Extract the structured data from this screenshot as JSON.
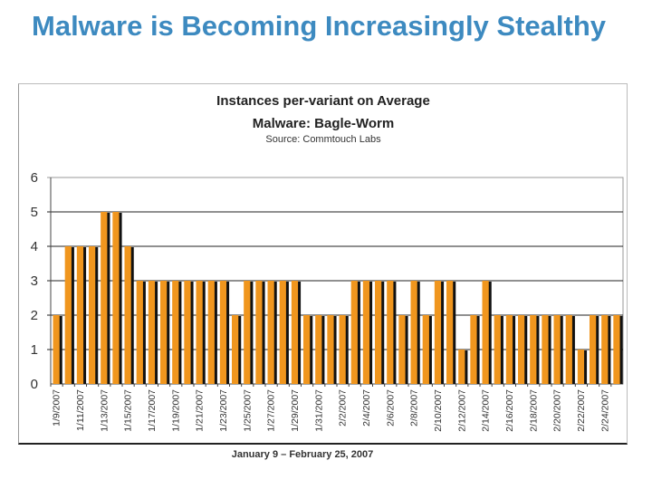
{
  "slide": {
    "title": "Malware is Becoming Increasingly Stealthy"
  },
  "chart_data": {
    "type": "bar",
    "title": "Instances per-variant on Average",
    "subtitle": "Malware: Bagle-Worm",
    "source": "Source: Commtouch Labs",
    "xlabel": "January 9 – February 25, 2007",
    "ylabel": "",
    "ylim": [
      0,
      6
    ],
    "yticks": [
      0,
      1,
      2,
      3,
      4,
      5,
      6
    ],
    "grid": true,
    "colors": {
      "bar": "#f0961e",
      "shadow": "#111111"
    },
    "categories": [
      "1/9/2007",
      "1/10/2007",
      "1/11/2007",
      "1/12/2007",
      "1/13/2007",
      "1/14/2007",
      "1/15/2007",
      "1/16/2007",
      "1/17/2007",
      "1/18/2007",
      "1/19/2007",
      "1/20/2007",
      "1/21/2007",
      "1/22/2007",
      "1/23/2007",
      "1/24/2007",
      "1/25/2007",
      "1/26/2007",
      "1/27/2007",
      "1/28/2007",
      "1/29/2007",
      "1/30/2007",
      "1/31/2007",
      "2/1/2007",
      "2/2/2007",
      "2/3/2007",
      "2/4/2007",
      "2/5/2007",
      "2/6/2007",
      "2/7/2007",
      "2/8/2007",
      "2/9/2007",
      "2/10/2007",
      "2/11/2007",
      "2/12/2007",
      "2/13/2007",
      "2/14/2007",
      "2/15/2007",
      "2/16/2007",
      "2/17/2007",
      "2/18/2007",
      "2/19/2007",
      "2/20/2007",
      "2/21/2007",
      "2/22/2007",
      "2/23/2007",
      "2/24/2007",
      "2/25/2007"
    ],
    "tick_labels": [
      "1/9/2007",
      "1/11/2007",
      "1/13/2007",
      "1/15/2007",
      "1/17/2007",
      "1/19/2007",
      "1/21/2007",
      "1/23/2007",
      "1/25/2007",
      "1/27/2007",
      "1/29/2007",
      "1/31/2007",
      "2/2/2007",
      "2/4/2007",
      "2/6/2007",
      "2/8/2007",
      "2/10/2007",
      "2/12/2007",
      "2/14/2007",
      "2/16/2007",
      "2/18/2007",
      "2/20/2007",
      "2/22/2007",
      "2/24/2007"
    ],
    "values": [
      2,
      4,
      4,
      4,
      5,
      5,
      4,
      3,
      3,
      3,
      3,
      3,
      3,
      3,
      3,
      2,
      3,
      3,
      3,
      3,
      3,
      2,
      2,
      2,
      2,
      3,
      3,
      3,
      3,
      2,
      3,
      2,
      3,
      3,
      1,
      2,
      3,
      2,
      2,
      2,
      2,
      2,
      2,
      2,
      1,
      2,
      2,
      2
    ]
  }
}
